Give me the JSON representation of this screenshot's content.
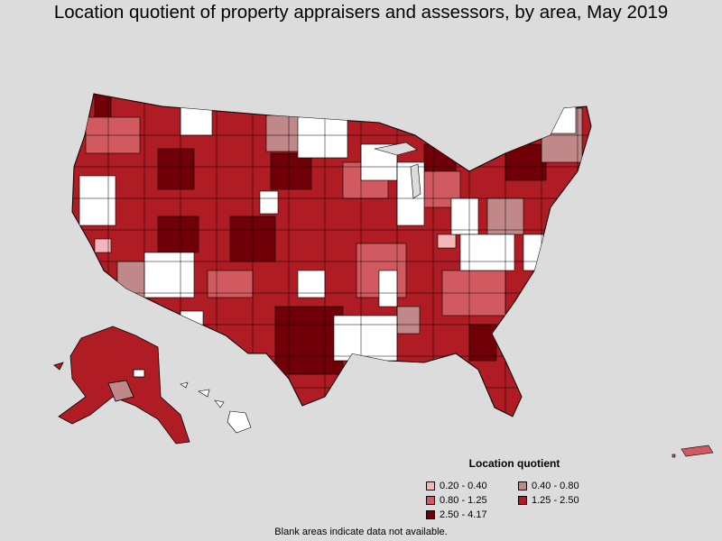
{
  "title": "Location quotient of property appraisers and assessors, by area, May 2019",
  "legend": {
    "title": "Location quotient",
    "items": [
      {
        "label": "0.20 - 0.40",
        "color": "#f4b6b8"
      },
      {
        "label": "0.40 - 0.80",
        "color": "#c08888"
      },
      {
        "label": "0.80 - 1.25",
        "color": "#d05a60"
      },
      {
        "label": "1.25 - 2.50",
        "color": "#b01c24"
      },
      {
        "label": "2.50 - 4.17",
        "color": "#700008"
      }
    ]
  },
  "footer": "Blank areas indicate data not available.",
  "colors": {
    "background": "#dcdcdc",
    "no_data": "#ffffff",
    "border": "#000000"
  }
}
